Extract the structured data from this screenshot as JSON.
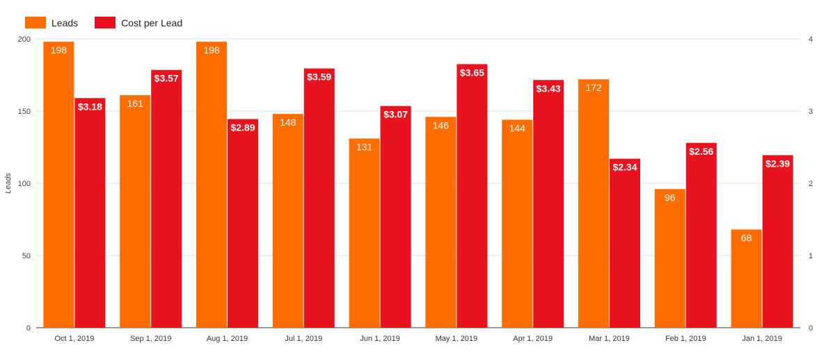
{
  "chart_data": {
    "type": "bar",
    "title": "",
    "categories": [
      "Oct 1, 2019",
      "Sep 1, 2019",
      "Aug 1, 2019",
      "Jul 1, 2019",
      "Jun 1, 2019",
      "May 1, 2019",
      "Apr 1, 2019",
      "Mar 1, 2019",
      "Feb 1, 2019",
      "Jan 1, 2019"
    ],
    "series": [
      {
        "name": "Leads",
        "axis": "left",
        "color": "#ff6d01",
        "values": [
          198,
          161,
          198,
          148,
          131,
          146,
          144,
          172,
          96,
          68
        ],
        "labels": [
          "198",
          "161",
          "198",
          "148",
          "131",
          "146",
          "144",
          "172",
          "96",
          "68"
        ]
      },
      {
        "name": "Cost per Lead",
        "axis": "right",
        "color": "#e8131f",
        "values": [
          3.18,
          3.57,
          2.89,
          3.59,
          3.07,
          3.65,
          3.43,
          2.34,
          2.56,
          2.39
        ],
        "labels": [
          "$3.18",
          "$3.57",
          "$2.89",
          "$3.59",
          "$3.07",
          "$3.65",
          "$3.43",
          "$2.34",
          "$2.56",
          "$2.39"
        ]
      }
    ],
    "ylabel": "Leads",
    "ylim": [
      0,
      200
    ],
    "yticks": [
      "0",
      "50",
      "100",
      "150",
      "200"
    ],
    "y2lim": [
      0,
      4
    ],
    "y2ticks": [
      "0",
      "1",
      "2",
      "3",
      "4"
    ],
    "grid": true,
    "legend_position": "top-left"
  }
}
